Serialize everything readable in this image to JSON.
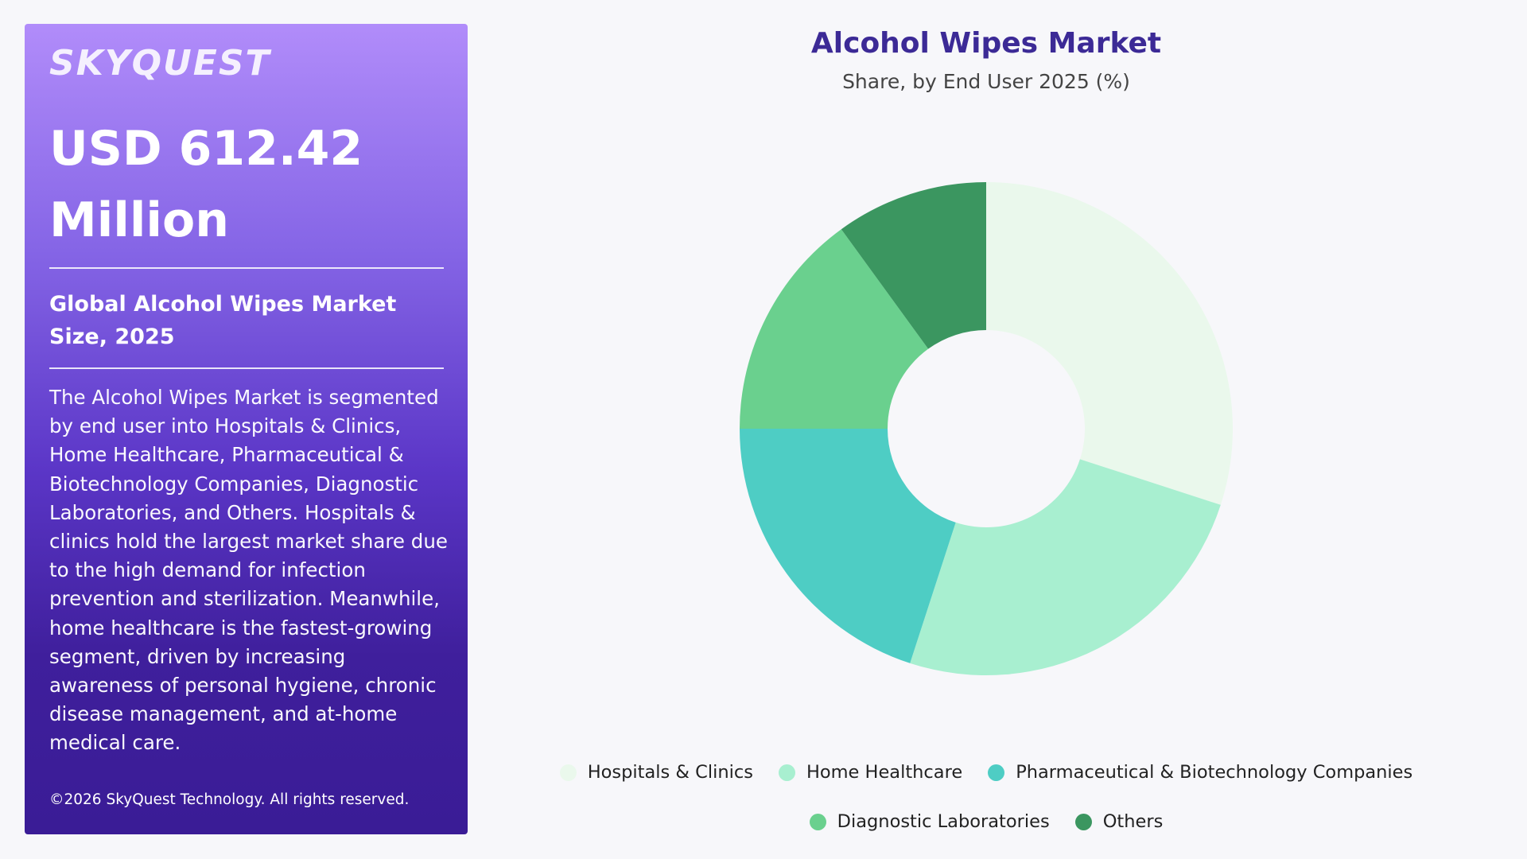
{
  "sidebar": {
    "logo": "SKYQUEST",
    "value_line1": "USD 612.42",
    "value_line2": "Million",
    "size_label": "Global Alcohol Wipes Market Size, 2025",
    "description": "The Alcohol Wipes Market is segmented by end user into Hospitals & Clinics, Home Healthcare, Pharmaceutical & Biotechnology Companies, Diagnostic Laboratories, and Others. Hospitals & clinics hold the largest market share due to the high demand for infection prevention and sterilization. Meanwhile, home healthcare is the fastest-growing segment, driven by increasing awareness of personal hygiene, chronic disease management, and at-home medical care.",
    "copyright": "©2026 SkyQuest Technology. All rights reserved."
  },
  "chart_data": {
    "type": "pie",
    "title": "Alcohol Wipes Market",
    "subtitle": "Share, by End User 2025 (%)",
    "donut": true,
    "legend_position": "bottom",
    "categories": [
      "Hospitals & Clinics",
      "Home Healthcare",
      "Pharmaceutical & Biotechnology Companies",
      "Diagnostic Laboratories",
      "Others"
    ],
    "values": [
      30,
      25,
      20,
      15,
      10
    ],
    "colors": [
      "#eaf8ec",
      "#a8efd0",
      "#4ecdc4",
      "#6ad08e",
      "#3b9660"
    ]
  }
}
